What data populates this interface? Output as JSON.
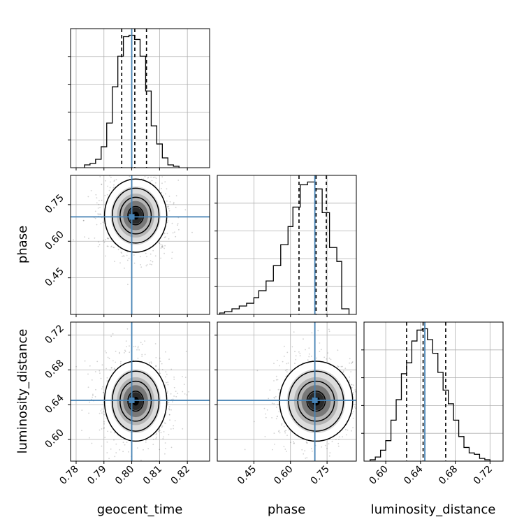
{
  "chart_data": {
    "type": "corner",
    "parameters": [
      "geocent_time",
      "phase",
      "luminosity_distance"
    ],
    "truths": [
      0.8,
      0.7,
      0.645
    ],
    "colors": {
      "truth": "#4682b4",
      "hist": "#000000",
      "grid": "#b0b0b0"
    },
    "grid": true,
    "x_ticks": {
      "geocent_time": [
        "0.78",
        "0.79",
        "0.80",
        "0.81",
        "0.82"
      ],
      "phase": [
        "0.45",
        "0.60",
        "0.75"
      ],
      "luminosity_distance": [
        "0.60",
        "0.64",
        "0.68",
        "0.72"
      ]
    },
    "y_ticks": {
      "phase": [
        "0.45",
        "0.60",
        "0.75"
      ],
      "luminosity_distance": [
        "0.60",
        "0.64",
        "0.68",
        "0.72"
      ]
    },
    "marginals": [
      {
        "parameter": "geocent_time",
        "range": [
          0.778,
          0.828
        ],
        "bin_edges": [
          0.783,
          0.785,
          0.787,
          0.789,
          0.791,
          0.793,
          0.795,
          0.797,
          0.799,
          0.801,
          0.803,
          0.805,
          0.807,
          0.809,
          0.811,
          0.813,
          0.815,
          0.817
        ],
        "counts": [
          2,
          3,
          6,
          15,
          32,
          58,
          80,
          94,
          95,
          92,
          80,
          55,
          30,
          17,
          7,
          2,
          1
        ],
        "quantiles": [
          0.7964,
          0.8011,
          0.8053
        ]
      },
      {
        "parameter": "phase",
        "range": [
          0.3,
          0.87
        ],
        "bin_edges": [
          0.31,
          0.33,
          0.36,
          0.39,
          0.42,
          0.45,
          0.47,
          0.5,
          0.53,
          0.56,
          0.59,
          0.61,
          0.64,
          0.67,
          0.7,
          0.73,
          0.76,
          0.79,
          0.81,
          0.84
        ],
        "counts": [
          1,
          2,
          4,
          6,
          8,
          12,
          17,
          24,
          35,
          50,
          63,
          77,
          93,
          95,
          90,
          73,
          48,
          38,
          4
        ],
        "quantiles": [
          0.635,
          0.705,
          0.747
        ]
      },
      {
        "parameter": "luminosity_distance",
        "range": [
          0.575,
          0.735
        ],
        "bin_edges": [
          0.582,
          0.588,
          0.594,
          0.6,
          0.606,
          0.612,
          0.618,
          0.624,
          0.63,
          0.636,
          0.642,
          0.648,
          0.654,
          0.66,
          0.666,
          0.672,
          0.678,
          0.684,
          0.69,
          0.696,
          0.702,
          0.708,
          0.714,
          0.72
        ],
        "counts": [
          1,
          3,
          8,
          15,
          30,
          45,
          64,
          72,
          88,
          96,
          97,
          89,
          79,
          65,
          52,
          42,
          30,
          18,
          10,
          6,
          5,
          2,
          1
        ],
        "quantiles": [
          0.624,
          0.643,
          0.669
        ]
      }
    ],
    "joint": [
      {
        "x": "geocent_time",
        "y": "phase",
        "mean": [
          0.8014,
          0.705
        ],
        "sigma": [
          0.0056,
          0.075
        ]
      },
      {
        "x": "geocent_time",
        "y": "luminosity_distance",
        "mean": [
          0.8014,
          0.644
        ],
        "sigma": [
          0.0056,
          0.023
        ]
      },
      {
        "x": "phase",
        "y": "luminosity_distance",
        "mean": [
          0.705,
          0.644
        ],
        "sigma": [
          0.075,
          0.023
        ]
      }
    ]
  }
}
